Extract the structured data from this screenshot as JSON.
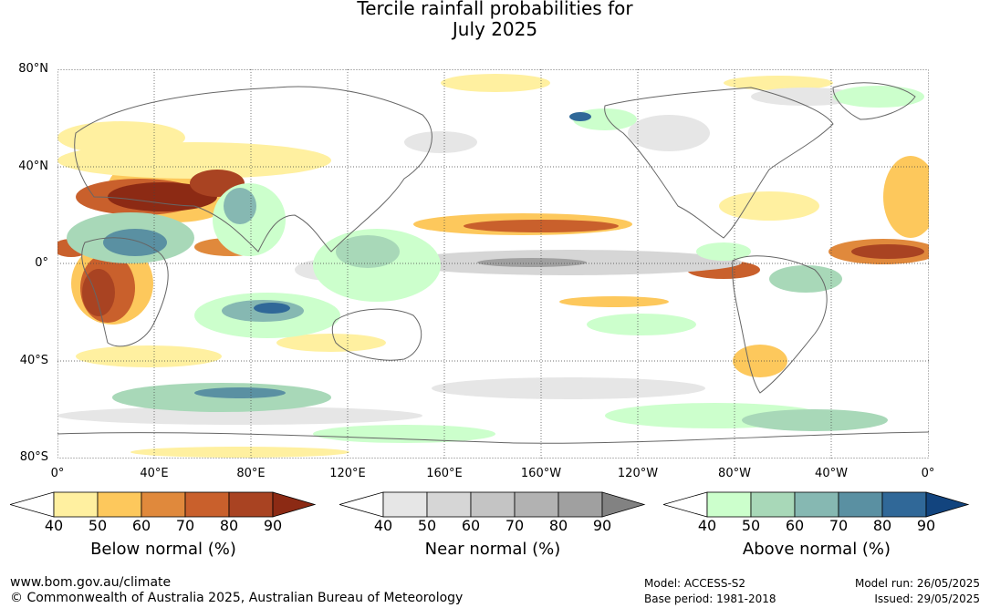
{
  "title": {
    "line1": "Tercile rainfall probabilities for",
    "line2": "July 2025"
  },
  "map": {
    "lat_labels": [
      "80°N",
      "40°N",
      "0°",
      "40°S",
      "80°S"
    ],
    "lon_labels": [
      "0°",
      "40°E",
      "80°E",
      "120°E",
      "160°E",
      "160°W",
      "120°W",
      "80°W",
      "40°W",
      "0°"
    ],
    "grid_lines": "dotted"
  },
  "colorbars": [
    {
      "title": "Below normal (%)",
      "ticks": [
        "40",
        "50",
        "60",
        "70",
        "80",
        "90"
      ],
      "colors": [
        "#ffffff",
        "#fff0a0",
        "#fdc85c",
        "#e0893c",
        "#c9602c",
        "#a94322",
        "#8c2a14"
      ]
    },
    {
      "title": "Near normal (%)",
      "ticks": [
        "40",
        "50",
        "60",
        "70",
        "80",
        "90"
      ],
      "colors": [
        "#ffffff",
        "#e6e6e6",
        "#d6d6d6",
        "#c4c4c4",
        "#b2b2b2",
        "#a0a0a0",
        "#828282"
      ]
    },
    {
      "title": "Above normal (%)",
      "ticks": [
        "40",
        "50",
        "60",
        "70",
        "80",
        "90"
      ],
      "colors": [
        "#ffffff",
        "#ccffcc",
        "#a8d8b8",
        "#86b8b2",
        "#5a90a2",
        "#306898",
        "#12447e"
      ]
    }
  ],
  "footer": {
    "website": "www.bom.gov.au/climate",
    "copyright": "© Commonwealth of Australia 2025, Australian Bureau of Meteorology",
    "model": "Model: ACCESS-S2",
    "base_period": "Base period: 1981-2018",
    "model_run": "Model run: 26/05/2025",
    "issued": "Issued: 29/05/2025"
  }
}
